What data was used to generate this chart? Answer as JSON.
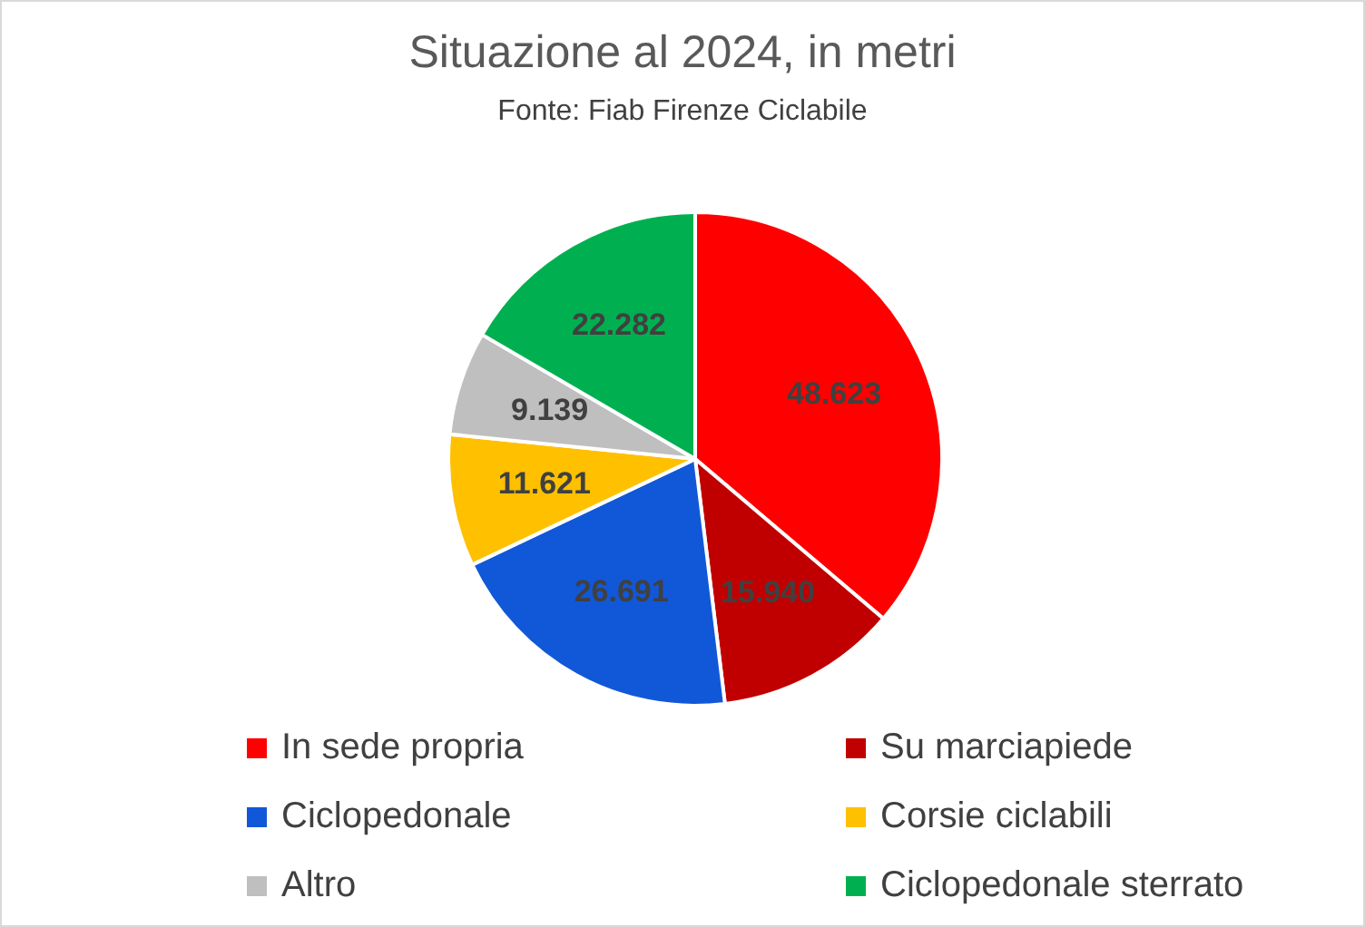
{
  "chart_data": {
    "type": "pie",
    "title": "Situazione al 2024, in metri",
    "subtitle": "Fonte: Fiab Firenze Ciclabile",
    "categories": [
      "In sede propria",
      "Su marciapiede",
      "Ciclopedonale",
      "Corsie ciclabili",
      "Altro",
      "Ciclopedonale sterrato"
    ],
    "values": [
      48623,
      15940,
      26691,
      11621,
      9139,
      22282
    ],
    "value_labels": [
      "48.623",
      "15.940",
      "26.691",
      "11.621",
      "9.139",
      "22.282"
    ],
    "colors": [
      "#ff0000",
      "#c00000",
      "#1158d8",
      "#ffc000",
      "#bfbfbf",
      "#00b050"
    ],
    "legend": "bottom"
  }
}
